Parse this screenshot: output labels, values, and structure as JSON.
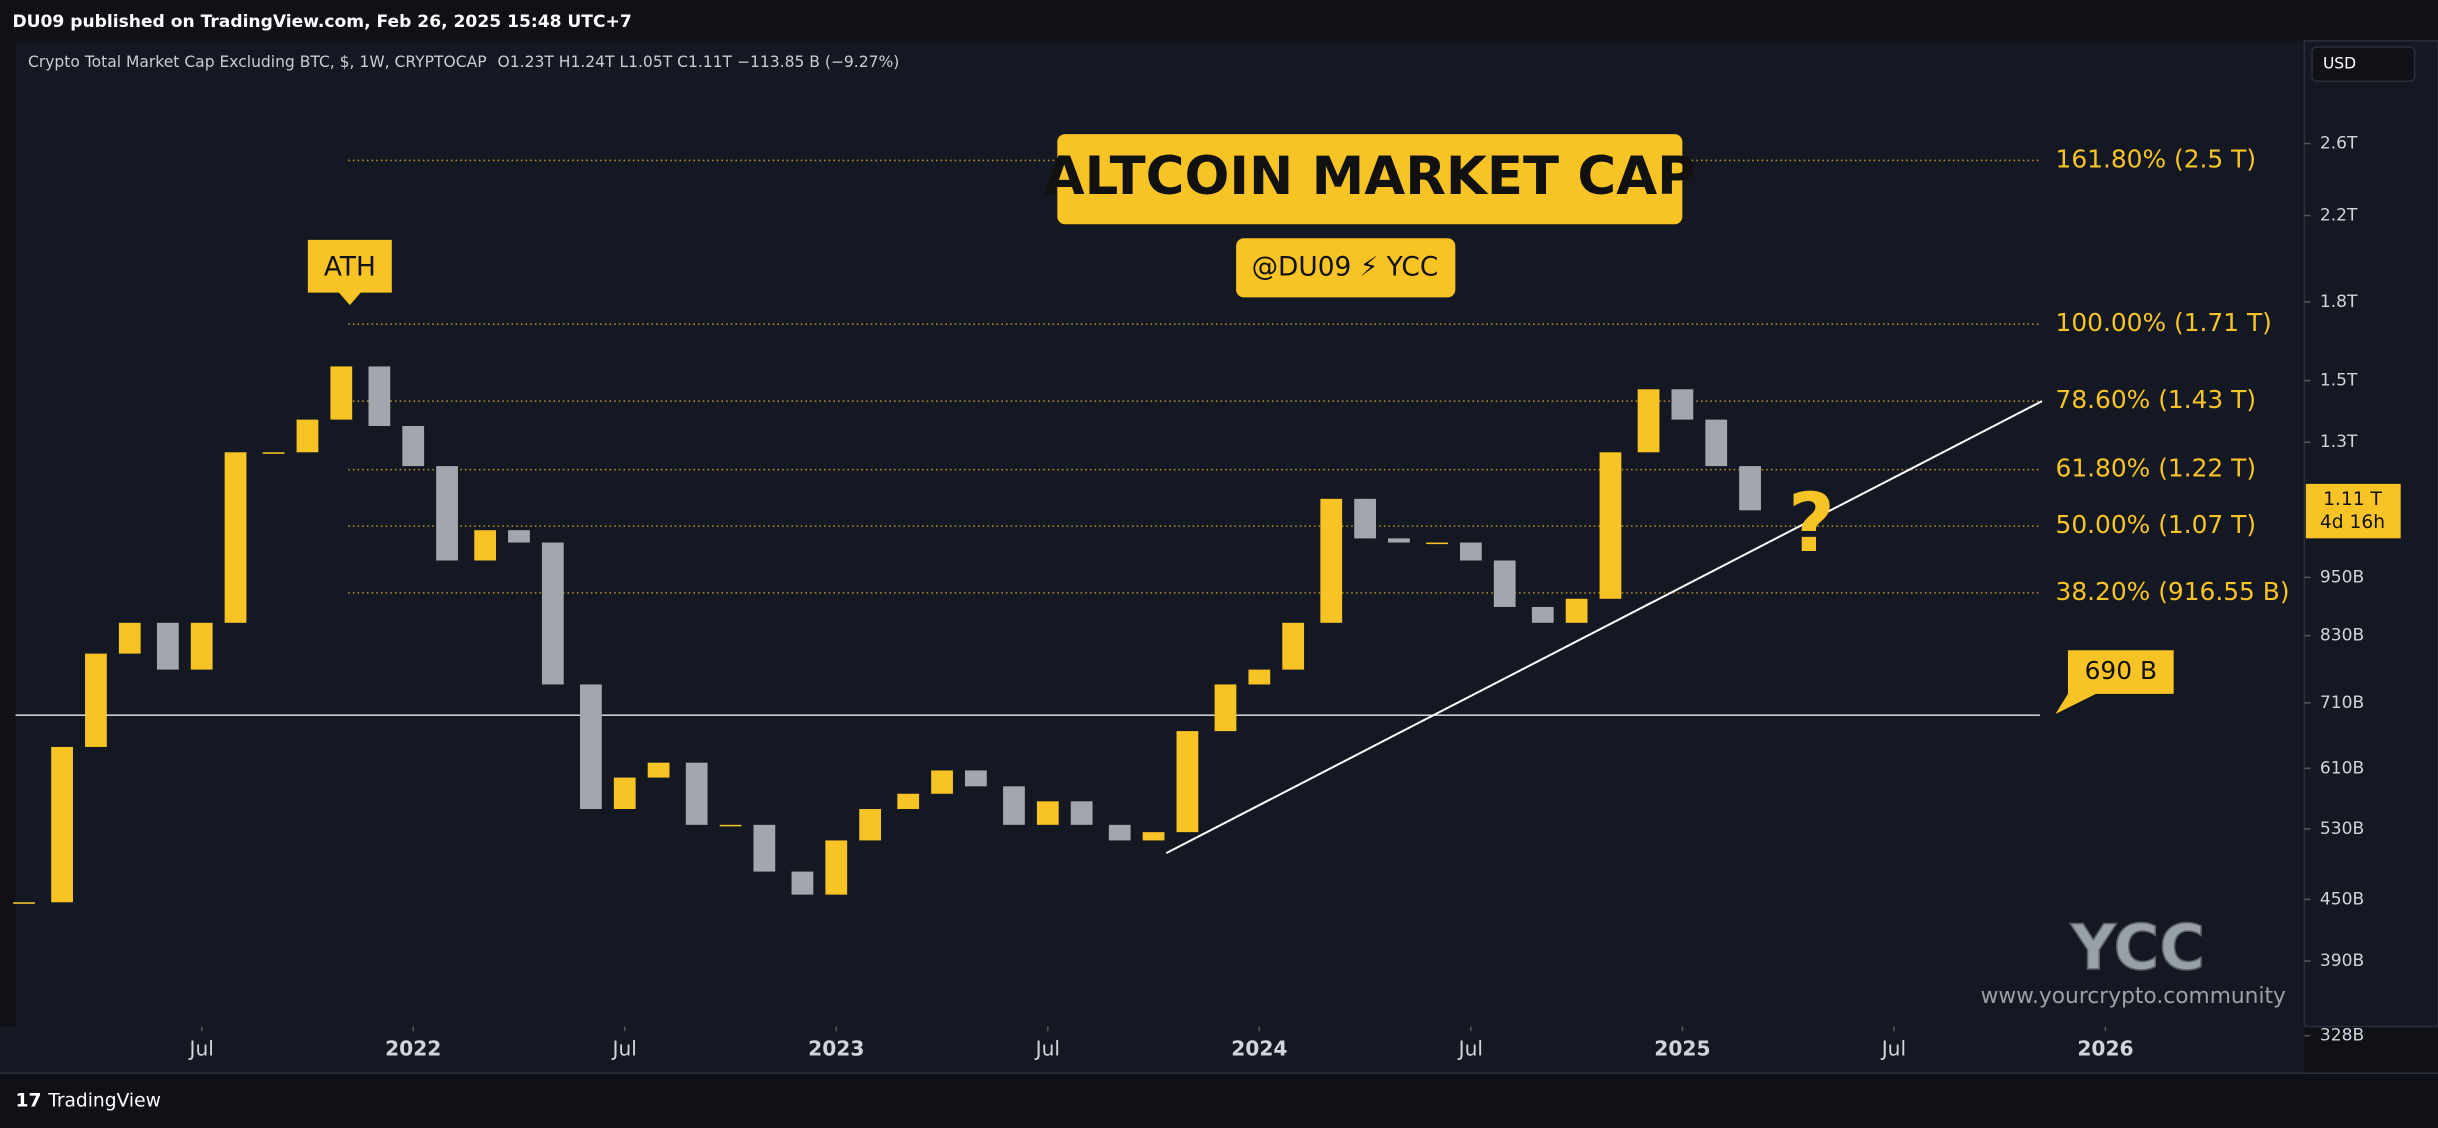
{
  "header": {
    "text": "DU09 published on TradingView.com, Feb 26, 2025 15:48 UTC+7"
  },
  "footer": {
    "brand": "TradingView"
  },
  "chart_data": {
    "type": "candlestick",
    "symbol": "Crypto Total Market Cap Excluding BTC, $, 1W, CRYPTOCAP",
    "ohlc": "O1.23T H1.24T L1.05T C1.11T −113.85 B (−9.27%)",
    "title": "ALTCOIN MARKET CAP",
    "subtitle": "@DU09 ⚡ YCC",
    "ath_label": "ATH",
    "question": "?",
    "watermark": "YCC",
    "website": "www.yourcrypto.community",
    "currency": "USD",
    "up_color": "#f7c325",
    "down_color": "#a3a6ad",
    "log_scale": true,
    "x": [
      2021.08,
      2021.17,
      2021.25,
      2021.33,
      2021.42,
      2021.5,
      2021.58,
      2021.67,
      2021.75,
      2021.83,
      2021.92,
      2022.0,
      2022.08,
      2022.17,
      2022.25,
      2022.33,
      2022.42,
      2022.5,
      2022.58,
      2022.67,
      2022.75,
      2022.83,
      2022.92,
      2023.0,
      2023.08,
      2023.17,
      2023.25,
      2023.33,
      2023.42,
      2023.5,
      2023.58,
      2023.67,
      2023.75,
      2023.83,
      2023.92,
      2024.0,
      2024.08,
      2024.17,
      2024.25,
      2024.33,
      2024.42,
      2024.5,
      2024.58,
      2024.67,
      2024.75,
      2024.83,
      2024.92,
      2025.0,
      2025.08,
      2025.16
    ],
    "values": [
      447000000000,
      641000000000,
      796000000000,
      855000000000,
      767000000000,
      855000000000,
      1270000000000,
      1270000000000,
      1370000000000,
      1550000000000,
      1350000000000,
      1230000000000,
      988000000000,
      1060000000000,
      1030000000000,
      741000000000,
      555000000000,
      597000000000,
      618000000000,
      535000000000,
      535000000000,
      480000000000,
      455000000000,
      516000000000,
      555000000000,
      575000000000,
      607000000000,
      585000000000,
      535000000000,
      565000000000,
      535000000000,
      516000000000,
      526000000000,
      665000000000,
      741000000000,
      767000000000,
      855000000000,
      1140000000000,
      1040000000000,
      1030000000000,
      1030000000000,
      988000000000,
      887000000000,
      855000000000,
      904000000000,
      1270000000000,
      1470000000000,
      1370000000000,
      1230000000000,
      1110000000000
    ],
    "xlim": [
      2021.06,
      2026.47
    ],
    "ylim": [
      335000000000,
      3300000000000
    ],
    "xticks": [
      {
        "value": 2021.5,
        "label": "Jul"
      },
      2022,
      {
        "value": 2022.5,
        "label": "Jul"
      },
      2023,
      {
        "value": 2023.5,
        "label": "Jul"
      },
      2024,
      {
        "value": 2024.5,
        "label": "Jul"
      },
      2025,
      {
        "value": 2025.5,
        "label": "Jul"
      },
      2026
    ],
    "yticks": [
      {
        "value": 2600000000000,
        "label": "2.6T"
      },
      {
        "value": 2200000000000,
        "label": "2.2T"
      },
      {
        "value": 1800000000000,
        "label": "1.8T"
      },
      {
        "value": 1500000000000,
        "label": "1.5T"
      },
      {
        "value": 1300000000000,
        "label": "1.3T"
      },
      {
        "value": 950000000000,
        "label": "950B"
      },
      {
        "value": 830000000000,
        "label": "830B"
      },
      {
        "value": 710000000000,
        "label": "710B"
      },
      {
        "value": 610000000000,
        "label": "610B"
      },
      {
        "value": 530000000000,
        "label": "530B"
      },
      {
        "value": 450000000000,
        "label": "450B"
      },
      {
        "value": 390000000000,
        "label": "390B"
      },
      {
        "value": 328000000000,
        "label": "328B"
      }
    ],
    "fib_levels": [
      {
        "label": "161.80% (2.5 T)",
        "value": 2500000000000
      },
      {
        "label": "100.00% (1.71 T)",
        "value": 1710000000000
      },
      {
        "label": "78.60% (1.43 T)",
        "value": 1430000000000
      },
      {
        "label": "61.80% (1.22 T)",
        "value": 1220000000000
      },
      {
        "label": "50.00% (1.07 T)",
        "value": 1070000000000
      },
      {
        "label": "38.20% (916.55 B)",
        "value": 916550000000
      }
    ],
    "support": {
      "label": "690 B",
      "value": 690000000000
    },
    "trendline": {
      "x": [
        2023.78,
        2025.85
      ],
      "y": [
        501000000000,
        1430000000000
      ]
    },
    "last_price": {
      "value": 1110000000000,
      "label": "1.11 T"
    },
    "countdown": "4d 16h"
  }
}
